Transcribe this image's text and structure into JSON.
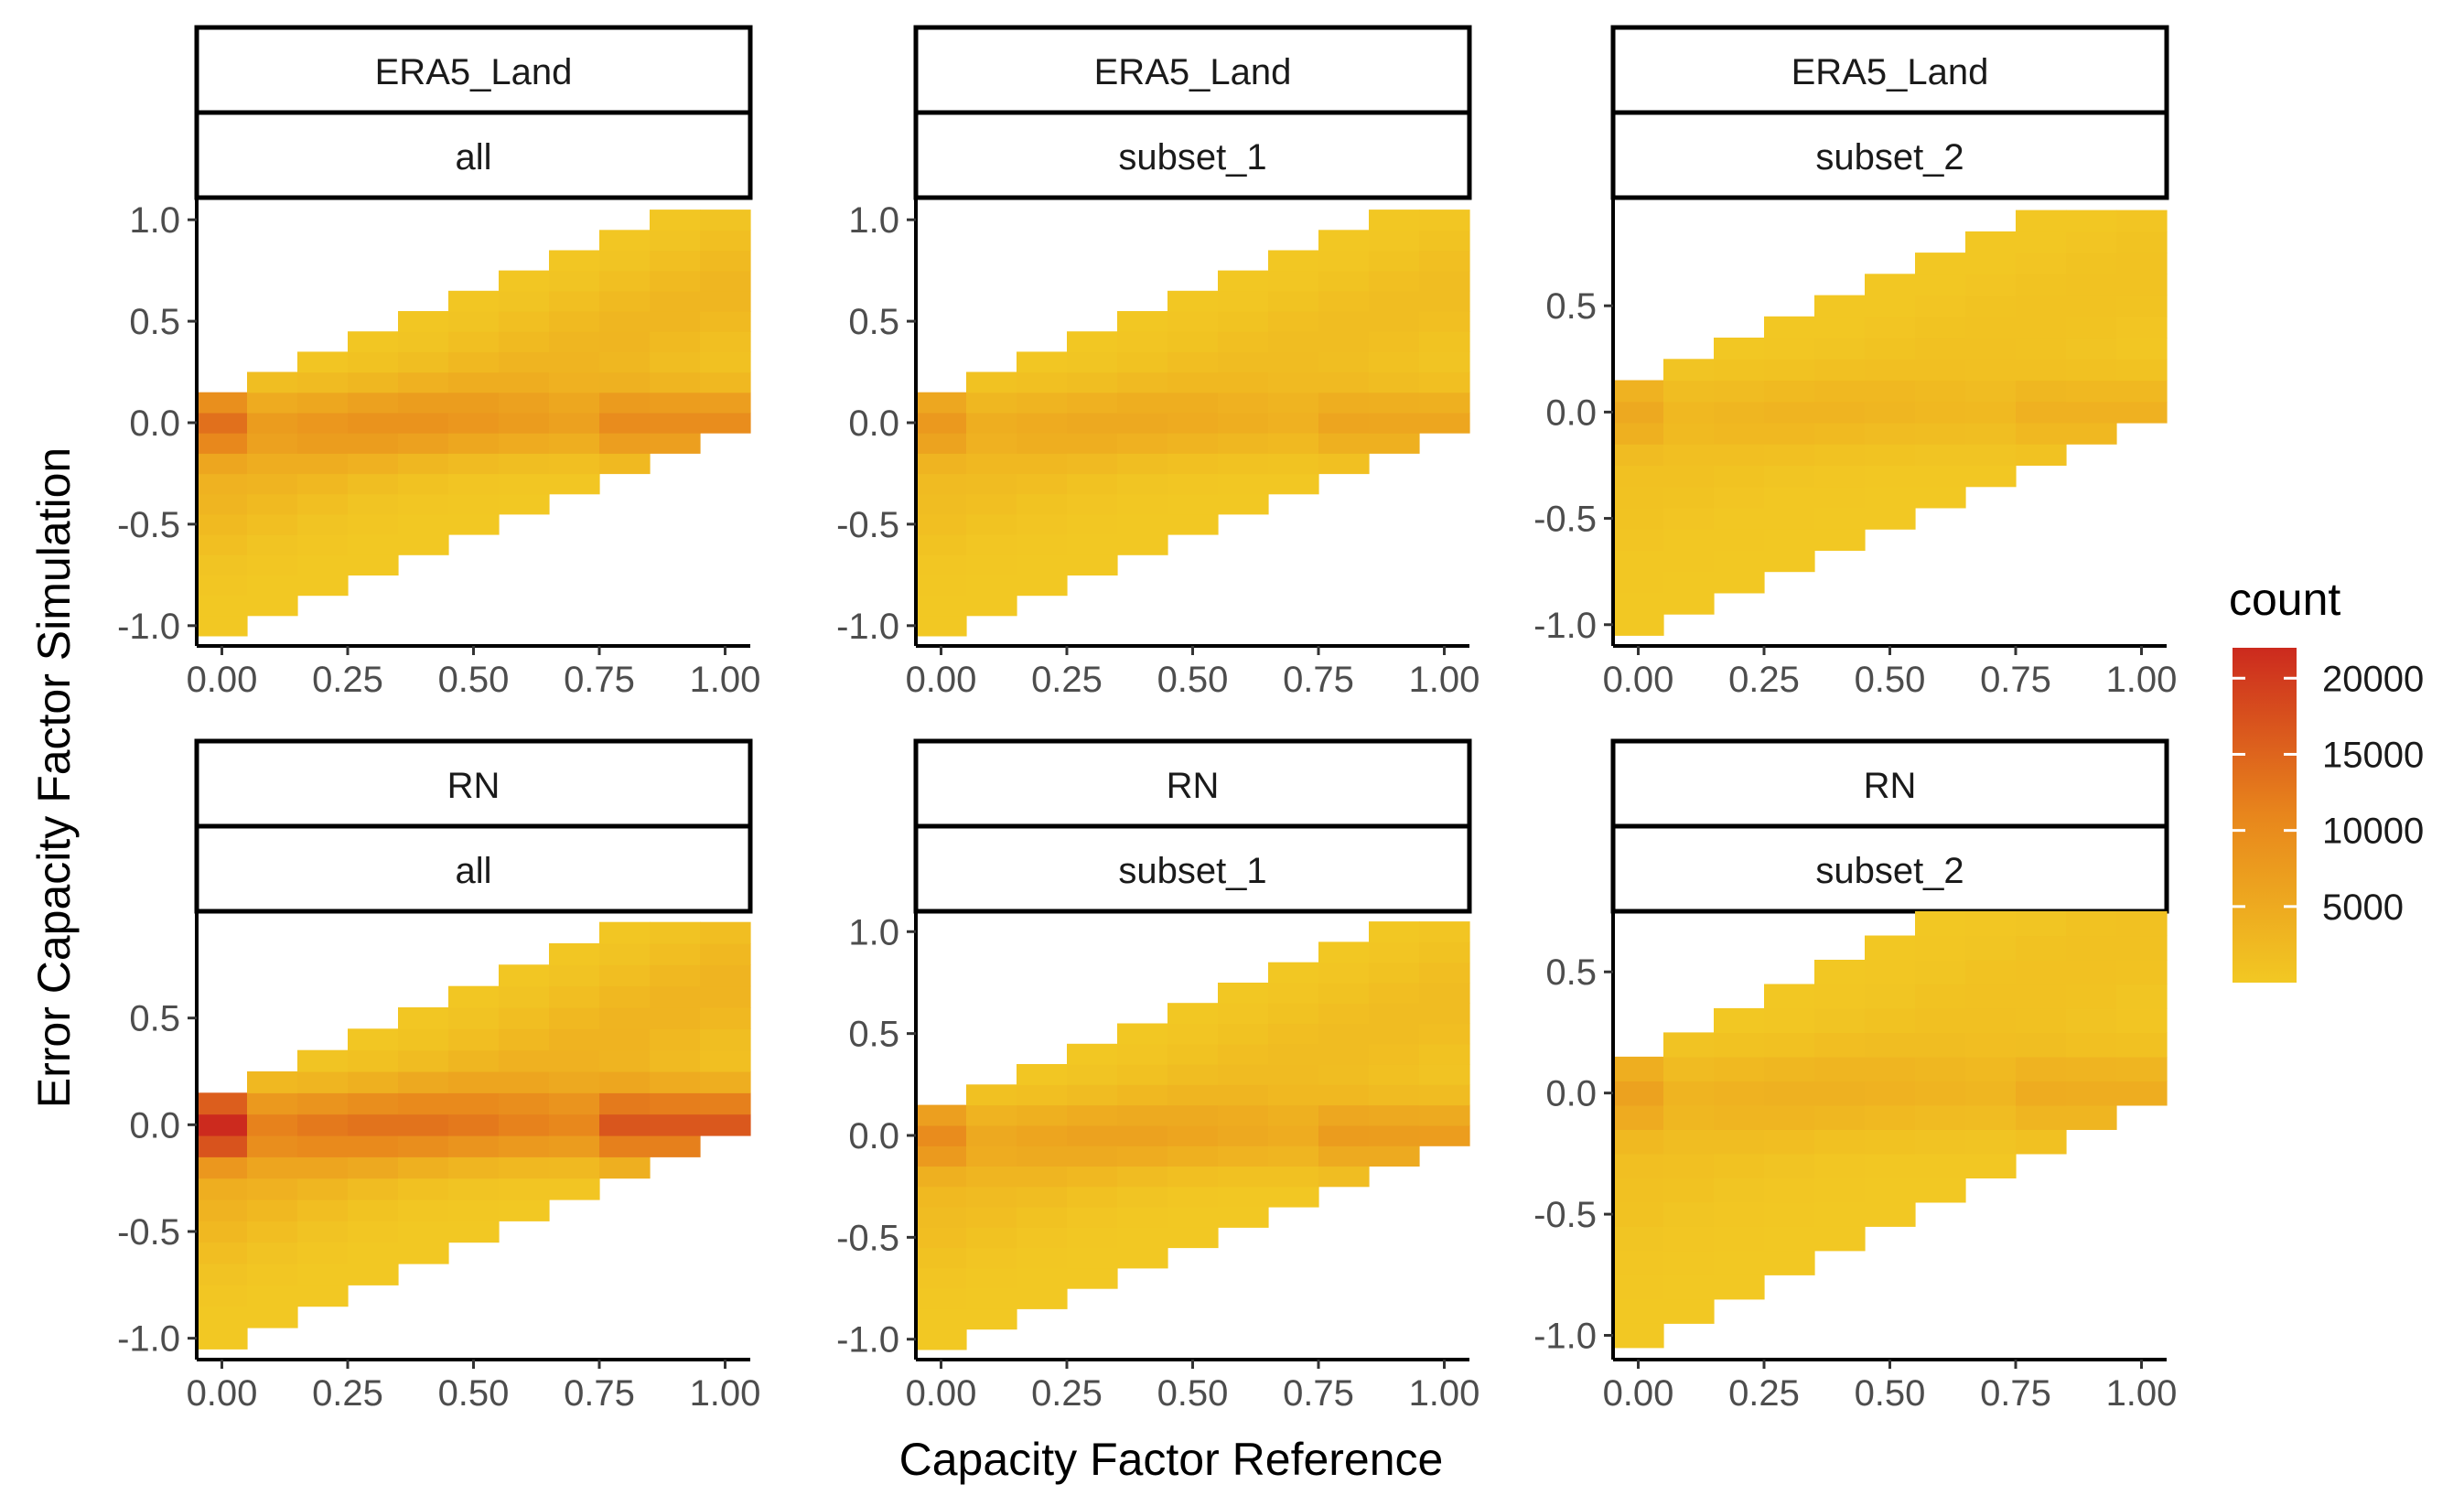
{
  "chart_data": {
    "type": "heatmap",
    "x_axis_title": "Capacity Factor Reference",
    "y_axis_title": "Error Capacity Factor Simulation",
    "legend": {
      "title": "count",
      "position": "right",
      "range": [
        0,
        22000
      ],
      "low_color": "#f2c823",
      "mid_color": "#e8861c",
      "high_color": "#cc2a1e",
      "ticks": [
        20000,
        15000,
        10000,
        5000
      ],
      "tick_labels": [
        "20000",
        "15000",
        "10000",
        "5000"
      ]
    },
    "bin_width_x": 0.1,
    "panels": [
      {
        "dataset": "ERA5_Land",
        "subset": "all",
        "xlim": [
          -0.05,
          1.05
        ],
        "ylim": [
          -1.1,
          1.1
        ],
        "yticks": [
          -1.0,
          -0.5,
          0.0,
          0.5,
          1.0
        ],
        "ytick_labels": [
          "-1.0",
          "-0.5",
          "0.0",
          "0.5",
          "1.0"
        ],
        "xticks": [
          0,
          0.25,
          0.5,
          0.75,
          1.0
        ],
        "xtick_labels": [
          "0.00",
          "0.25",
          "0.50",
          "0.75",
          "1.00"
        ],
        "bin_h": 0.1,
        "bin_y0": -1.0,
        "bin_y1": 1.0,
        "peak": 13000,
        "peak_row": 0.0,
        "spread": 0.9
      },
      {
        "dataset": "ERA5_Land",
        "subset": "subset_1",
        "xlim": [
          -0.05,
          1.05
        ],
        "ylim": [
          -1.1,
          1.1
        ],
        "yticks": [
          -1.0,
          -0.5,
          0.0,
          0.5,
          1.0
        ],
        "ytick_labels": [
          "-1.0",
          "-0.5",
          "0.0",
          "0.5",
          "1.0"
        ],
        "xticks": [
          0,
          0.25,
          0.5,
          0.75,
          1.0
        ],
        "xtick_labels": [
          "0.00",
          "0.25",
          "0.50",
          "0.75",
          "1.00"
        ],
        "bin_h": 0.1,
        "bin_y0": -1.0,
        "bin_y1": 1.0,
        "peak": 7500,
        "peak_row": 0.0,
        "spread": 0.55
      },
      {
        "dataset": "ERA5_Land",
        "subset": "subset_2",
        "xlim": [
          -0.05,
          1.05
        ],
        "ylim": [
          -1.1,
          1.0
        ],
        "yticks": [
          -1.0,
          -0.5,
          0.0,
          0.5
        ],
        "ytick_labels": [
          "-1.0",
          "-0.5",
          "0.0",
          "0.5"
        ],
        "xticks": [
          0,
          0.25,
          0.5,
          0.75,
          1.0
        ],
        "xtick_labels": [
          "0.00",
          "0.25",
          "0.50",
          "0.75",
          "1.00"
        ],
        "bin_h": 0.1,
        "bin_y0": -1.0,
        "bin_y1": 0.9,
        "peak": 5000,
        "peak_row": 0.0,
        "spread": 0.3
      },
      {
        "dataset": "RN",
        "subset": "all",
        "xlim": [
          -0.05,
          1.05
        ],
        "ylim": [
          -1.1,
          1.0
        ],
        "yticks": [
          -1.0,
          -0.5,
          0.0,
          0.5
        ],
        "ytick_labels": [
          "-1.0",
          "-0.5",
          "0.0",
          "0.5"
        ],
        "xticks": [
          0,
          0.25,
          0.5,
          0.75,
          1.0
        ],
        "xtick_labels": [
          "0.00",
          "0.25",
          "0.50",
          "0.75",
          "1.00"
        ],
        "bin_h": 0.1,
        "bin_y0": -1.0,
        "bin_y1": 0.9,
        "peak": 22000,
        "peak_row": 0.0,
        "spread": 1.0
      },
      {
        "dataset": "RN",
        "subset": "subset_1",
        "xlim": [
          -0.05,
          1.05
        ],
        "ylim": [
          -1.1,
          1.1
        ],
        "yticks": [
          -1.0,
          -0.5,
          0.0,
          0.5,
          1.0
        ],
        "ytick_labels": [
          "-1.0",
          "-0.5",
          "0.0",
          "0.5",
          "1.0"
        ],
        "xticks": [
          0,
          0.25,
          0.5,
          0.75,
          1.0
        ],
        "xtick_labels": [
          "0.00",
          "0.25",
          "0.50",
          "0.75",
          "1.00"
        ],
        "bin_h": 0.1,
        "bin_y0": -1.0,
        "bin_y1": 1.0,
        "peak": 9500,
        "peak_row": 0.0,
        "spread": 0.6
      },
      {
        "dataset": "RN",
        "subset": "subset_2",
        "xlim": [
          -0.05,
          1.05
        ],
        "ylim": [
          -1.1,
          0.75
        ],
        "yticks": [
          -1.0,
          -0.5,
          0.0,
          0.5
        ],
        "ytick_labels": [
          "-1.0",
          "-0.5",
          "0.0",
          "0.5"
        ],
        "xticks": [
          0,
          0.25,
          0.5,
          0.75,
          1.0
        ],
        "xtick_labels": [
          "0.00",
          "0.25",
          "0.50",
          "0.75",
          "1.00"
        ],
        "bin_h": 0.1,
        "bin_y0": -1.0,
        "bin_y1": 0.7,
        "peak": 6000,
        "peak_row": 0.0,
        "spread": 0.35
      }
    ]
  }
}
